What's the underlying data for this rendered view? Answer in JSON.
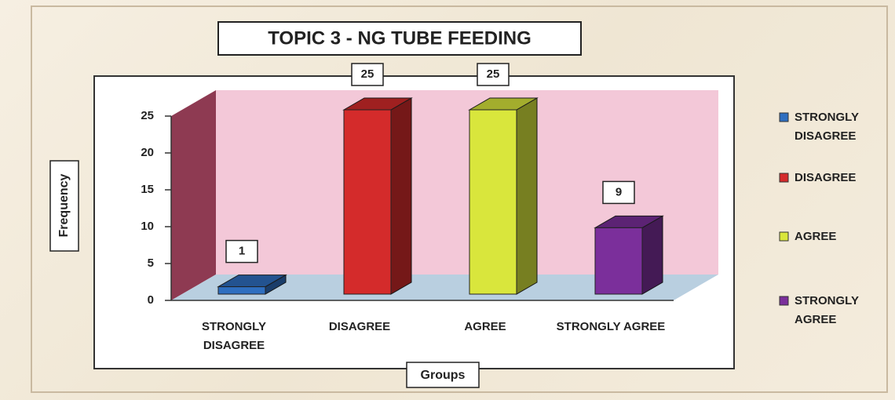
{
  "chart_data": {
    "type": "bar3d",
    "title": "TOPIC 3 - NG TUBE FEEDING",
    "xlabel": "Groups",
    "ylabel": "Frequency",
    "categories": [
      "STRONGLY DISAGREE",
      "DISAGREE",
      "AGREE",
      "STRONGLY AGREE"
    ],
    "values": [
      1,
      25,
      25,
      9
    ],
    "colors": [
      "#2f6fc0",
      "#d42b2b",
      "#d9e63c",
      "#7b2f9b"
    ],
    "ylim": [
      0,
      25
    ],
    "yticks": [
      0,
      5,
      10,
      15,
      20,
      25
    ],
    "grid": false,
    "legend": "right"
  }
}
